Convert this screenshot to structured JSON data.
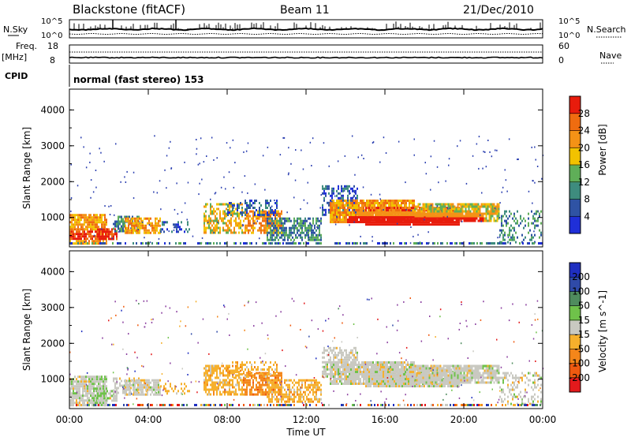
{
  "header": {
    "station": "Blackstone (fitACF)",
    "beam": "Beam 11",
    "date": "21/Dec/2010"
  },
  "summary_panels": {
    "nsky_label": "N.Sky",
    "nsearch_label": "N.Search",
    "nsky_ticks_left": [
      "10^5",
      "10^0"
    ],
    "nsky_ticks_right": [
      "10^5",
      "10^0"
    ],
    "freq_label": "Freq.",
    "freq_unit": "[MHz]",
    "freq_ticks": [
      "18",
      "8"
    ],
    "nave_label": "Nave",
    "nave_ticks": [
      "60",
      "0"
    ],
    "cpid_label": "CPID",
    "cpid_text": "normal (fast stereo) 153"
  },
  "colors": {
    "power_scale": [
      "#1f2fd8",
      "#2f53a4",
      "#3e8c7e",
      "#5fae58",
      "#f2c200",
      "#f49216",
      "#ef6c10",
      "#e81c0c"
    ],
    "velocity_scale": [
      "#e31a1c",
      "#ef5a10",
      "#f4861a",
      "#f6b02c",
      "#c9c9c1",
      "#6fc24a",
      "#4f8c5e",
      "#2f4aa8",
      "#1f2fc0"
    ],
    "noise_dot": "#2b3fb0",
    "velocity_noise_dot": "#8b3fa0"
  },
  "chart_data": [
    {
      "type": "heatmap",
      "name": "power",
      "xlabel": "",
      "ylabel": "Slant Range [km]",
      "ylim": [
        180,
        4580
      ],
      "y_ticks": [
        "1000",
        "2000",
        "3000",
        "4000"
      ],
      "colorbar_label": "Power [dB]",
      "colorbar_ticks": [
        "4",
        "8",
        "12",
        "16",
        "20",
        "24",
        "28"
      ],
      "colorbar_range": [
        0,
        32
      ]
    },
    {
      "type": "heatmap",
      "name": "velocity",
      "xlabel": "Time UT",
      "ylabel": "Slant Range [km]",
      "ylim": [
        180,
        4580
      ],
      "x_ticks": [
        "00:00",
        "04:00",
        "08:00",
        "12:00",
        "16:00",
        "20:00",
        "00:00"
      ],
      "y_ticks": [
        "1000",
        "2000",
        "3000",
        "4000"
      ],
      "colorbar_label": "Velocity [m s^-1]",
      "colorbar_ticks": [
        "-200",
        "-100",
        "-50",
        "-15",
        "15",
        "50",
        "100",
        "200"
      ]
    }
  ]
}
